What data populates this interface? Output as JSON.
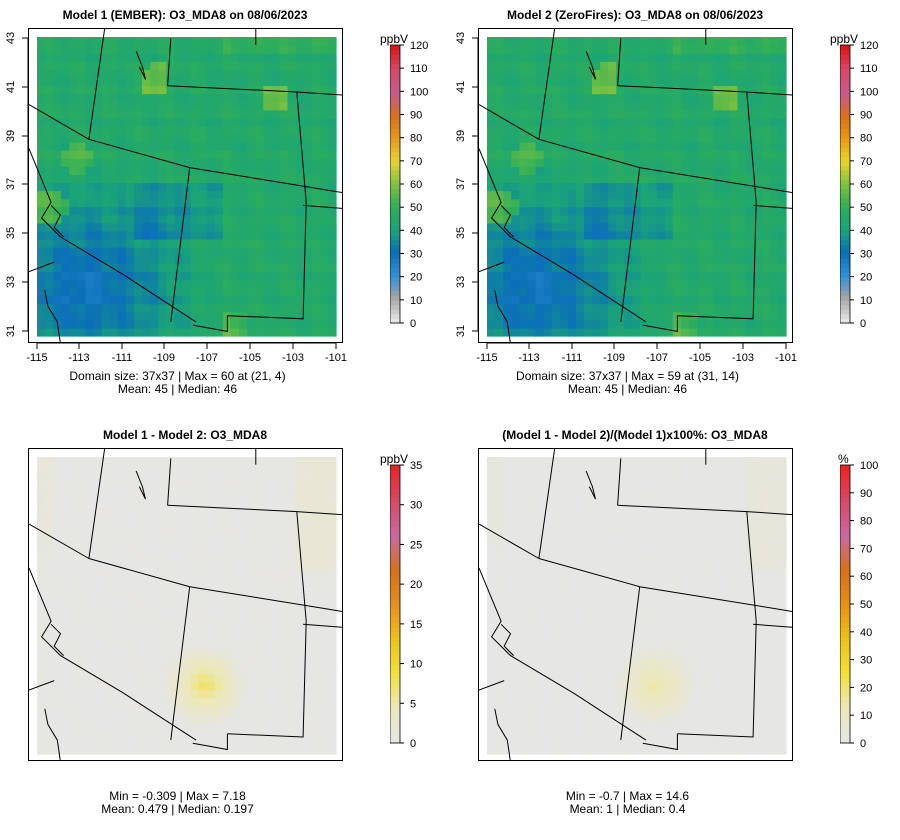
{
  "panels": [
    {
      "title": "Model 1 (EMBER): O3_MDA8 on 08/06/2023",
      "kind": "abs",
      "colorbar": {
        "unit": "ppbV",
        "ticks": [
          "0",
          "10",
          "20",
          "30",
          "40",
          "50",
          "60",
          "70",
          "80",
          "90",
          "100",
          "110",
          "120"
        ],
        "min": 0,
        "max": 120
      },
      "stats_line1": "Domain size: 37x37 | Max = 60 at (21, 4)",
      "stats_line2": "Mean: 45 |  Median: 46",
      "show_axes": true
    },
    {
      "title": "Model 2 (ZeroFires): O3_MDA8 on 08/06/2023",
      "kind": "abs",
      "colorbar": {
        "unit": "ppbV",
        "ticks": [
          "0",
          "10",
          "20",
          "30",
          "40",
          "50",
          "60",
          "70",
          "80",
          "90",
          "100",
          "110",
          "120"
        ],
        "min": 0,
        "max": 120
      },
      "stats_line1": "Domain size: 37x37 | Max = 59 at (31, 14)",
      "stats_line2": "Mean: 45 |  Median: 46",
      "show_axes": true
    },
    {
      "title": "Model 1 - Model 2: O3_MDA8",
      "kind": "diff",
      "colorbar": {
        "unit": "ppbV",
        "ticks": [
          "0",
          "5",
          "10",
          "15",
          "20",
          "25",
          "30",
          "35"
        ],
        "min": 0,
        "max": 35
      },
      "stats_line1": "Min = -0.309 | Max = 7.18",
      "stats_line2": "Mean: 0.479 |  Median: 0.197",
      "show_axes": false
    },
    {
      "title": "(Model 1 - Model 2)/(Model 1)x100%: O3_MDA8",
      "kind": "pct",
      "colorbar": {
        "unit": "%",
        "ticks": [
          "0",
          "10",
          "20",
          "30",
          "40",
          "50",
          "60",
          "70",
          "80",
          "90",
          "100"
        ],
        "min": 0,
        "max": 100
      },
      "stats_line1": "Min = -0.7 | Max = 14.6",
      "stats_line2": "Mean: 1 |  Median: 0.4",
      "show_axes": false
    }
  ],
  "axes": {
    "x_ticks": [
      "-115",
      "-113",
      "-111",
      "-109",
      "-107",
      "-105",
      "-103",
      "-101"
    ],
    "y_ticks": [
      "31",
      "33",
      "35",
      "37",
      "39",
      "41",
      "43"
    ]
  },
  "colors": {
    "abs_scale": [
      "#e6e6e6",
      "#a6a6a6",
      "#2f8fd4",
      "#0a6fb8",
      "#1aa37a",
      "#2eae5a",
      "#7fc13f",
      "#e6d62e",
      "#e89a16",
      "#d8701a",
      "#c75a8c",
      "#d84a6a",
      "#d61a1a"
    ],
    "diff_scale": [
      "#e6e6e6",
      "#ece8b8",
      "#f2e03a",
      "#eec01a",
      "#e8901a",
      "#d8701a",
      "#c76aa0",
      "#d84a6a",
      "#e62626"
    ]
  }
}
